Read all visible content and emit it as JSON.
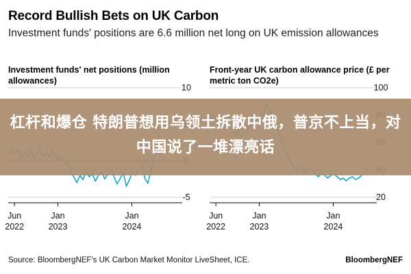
{
  "title": "Record Bullish Bets on UK Carbon",
  "subtitle": "Investment funds' positions are 6.6 million net long on UK emission allowances",
  "source": "Source: BloombergNEF's UK Carbon Market Monitor LiveSheet, ICE.",
  "brand": "BloombergNEF",
  "overlay_headline": "杠杆和爆仓 特朗普想用乌领土拆散中俄，普京不上当，对中国说了一堆漂亮话",
  "colors": {
    "line": "#1aa3c8",
    "grid": "#cfcfcf",
    "zero_line": "#555555",
    "overlay": "#aa8c70"
  },
  "chart_data": [
    {
      "type": "line",
      "title": "Investment funds' net positions (million allowances)",
      "x_ticks": [
        {
          "date": "2022-06-01",
          "label": [
            "Jun",
            "2022"
          ]
        },
        {
          "date": "2023-01-01",
          "label": [
            "Jan",
            "2023"
          ]
        },
        {
          "date": "2024-01-01",
          "label": [
            "Jan",
            "2024"
          ]
        }
      ],
      "y_ticks": [
        10,
        5,
        0,
        -5
      ],
      "ylim": [
        -5,
        10
      ],
      "xlim": [
        "2022-05-01",
        "2024-06-30"
      ],
      "grid": true,
      "series": [
        {
          "x": [
            "2022-05-05",
            "2022-05-20",
            "2022-06-05",
            "2022-06-20",
            "2022-07-05",
            "2022-07-20",
            "2022-08-05",
            "2022-08-20",
            "2022-09-05",
            "2022-09-20",
            "2022-10-05",
            "2022-10-20",
            "2022-11-05",
            "2022-11-20",
            "2022-12-05",
            "2022-12-20",
            "2023-01-05",
            "2023-01-20",
            "2023-02-05",
            "2023-02-20",
            "2023-03-05",
            "2023-03-20",
            "2023-04-05",
            "2023-04-20",
            "2023-05-05",
            "2023-05-20",
            "2023-06-05",
            "2023-06-20",
            "2023-07-05",
            "2023-07-20",
            "2023-08-05",
            "2023-08-20",
            "2023-09-05",
            "2023-09-20",
            "2023-10-05",
            "2023-10-20",
            "2023-11-05",
            "2023-11-20",
            "2023-12-05",
            "2023-12-20",
            "2024-01-05",
            "2024-01-20",
            "2024-02-05",
            "2024-02-20",
            "2024-03-05",
            "2024-03-20",
            "2024-04-05",
            "2024-04-20",
            "2024-05-05",
            "2024-05-20",
            "2024-06-05",
            "2024-06-20"
          ],
          "values": [
            1.0,
            1.4,
            0.8,
            1.6,
            0.3,
            1.2,
            0.6,
            1.5,
            0.2,
            0.9,
            1.8,
            0.6,
            1.1,
            0.4,
            1.5,
            0.7,
            0.1,
            0.6,
            -0.5,
            -0.2,
            -1.4,
            -2.2,
            -3.0,
            -2.0,
            -2.6,
            -1.5,
            -2.2,
            -1.8,
            -2.8,
            -2.0,
            -1.4,
            -2.5,
            -1.8,
            -1.0,
            -2.2,
            -3.2,
            -2.4,
            -1.6,
            -3.5,
            -2.6,
            -1.5,
            -2.0,
            -1.0,
            -0.5,
            -2.4,
            -3.1,
            -1.2,
            0.5,
            2.5,
            4.2,
            5.8,
            6.6
          ]
        }
      ]
    },
    {
      "type": "line",
      "title": "Front-year UK carbon allowance price (£ per metric ton CO2e)",
      "x_ticks": [
        {
          "date": "2022-06-01",
          "label": [
            "Jun",
            "2022"
          ]
        },
        {
          "date": "2023-01-01",
          "label": [
            "Jan",
            "2023"
          ]
        },
        {
          "date": "2024-01-01",
          "label": [
            "Jan",
            "2024"
          ]
        }
      ],
      "y_ticks": [
        100,
        80,
        60,
        40,
        20
      ],
      "ylim": [
        20,
        100
      ],
      "xlim": [
        "2022-05-01",
        "2024-06-30"
      ],
      "grid": true,
      "series": [
        {
          "x": [
            "2022-05-05",
            "2022-05-20",
            "2022-06-05",
            "2022-06-20",
            "2022-07-05",
            "2022-07-20",
            "2022-08-05",
            "2022-08-20",
            "2022-09-05",
            "2022-09-20",
            "2022-10-05",
            "2022-10-20",
            "2022-11-05",
            "2022-11-20",
            "2022-12-05",
            "2022-12-20",
            "2023-01-05",
            "2023-01-20",
            "2023-02-05",
            "2023-02-20",
            "2023-03-05",
            "2023-03-20",
            "2023-04-05",
            "2023-04-20",
            "2023-05-05",
            "2023-05-20",
            "2023-06-05",
            "2023-06-20",
            "2023-07-05",
            "2023-07-20",
            "2023-08-05",
            "2023-08-20",
            "2023-09-05",
            "2023-09-20",
            "2023-10-05",
            "2023-10-20",
            "2023-11-05",
            "2023-11-20",
            "2023-12-05",
            "2023-12-20",
            "2024-01-05",
            "2024-01-20",
            "2024-02-05",
            "2024-02-20",
            "2024-03-05",
            "2024-03-20",
            "2024-04-05",
            "2024-04-20",
            "2024-05-05",
            "2024-05-20",
            "2024-06-05",
            "2024-06-20"
          ],
          "values": [
            80,
            76,
            78,
            72,
            74,
            70,
            73,
            68,
            66,
            70,
            64,
            67,
            69,
            73,
            76,
            74,
            77,
            82,
            88,
            85,
            78,
            74,
            68,
            62,
            55,
            50,
            46,
            42,
            40,
            44,
            41,
            38,
            42,
            40,
            37,
            35,
            38,
            36,
            34,
            36,
            37,
            35,
            33,
            34,
            32,
            34,
            35,
            33,
            34,
            36,
            38,
            43
          ]
        }
      ]
    }
  ]
}
